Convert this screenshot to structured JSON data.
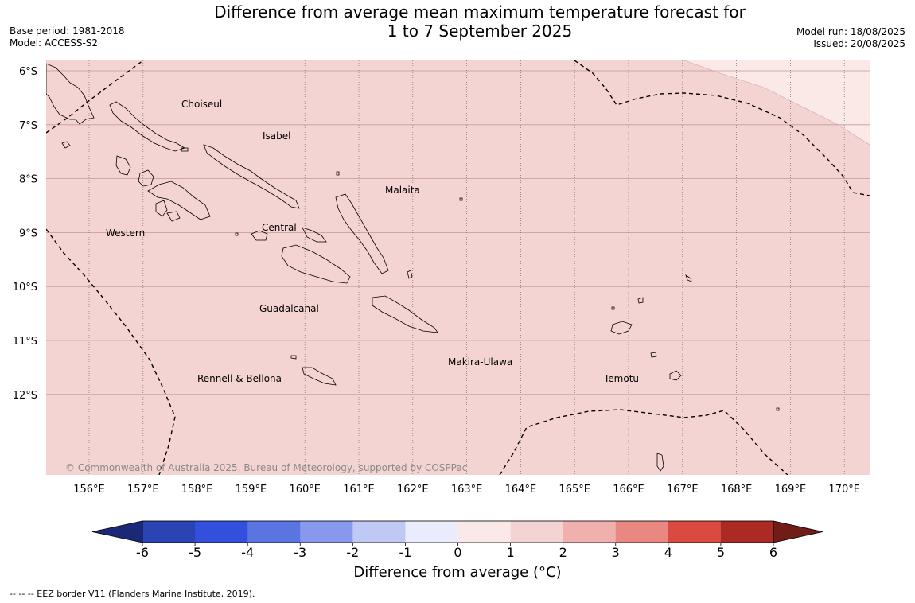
{
  "title": {
    "line1": "Difference from average mean maximum temperature forecast for",
    "line2": "1 to 7 September 2025"
  },
  "meta": {
    "base_period": "Base period: 1981-2018",
    "model": "Model: ACCESS-S2",
    "model_run": "Model run: 18/08/2025",
    "issued": "Issued: 20/08/2025"
  },
  "map": {
    "lat_labels": [
      "6°S",
      "7°S",
      "8°S",
      "9°S",
      "10°S",
      "11°S",
      "12°S"
    ],
    "lon_labels": [
      "156°E",
      "157°E",
      "158°E",
      "159°E",
      "160°E",
      "161°E",
      "162°E",
      "163°E",
      "164°E",
      "165°E",
      "166°E",
      "167°E",
      "168°E",
      "169°E",
      "170°E"
    ],
    "provinces": [
      "Choiseul",
      "Isabel",
      "Malaita",
      "Western",
      "Central",
      "Guadalcanal",
      "Makira-Ulawa",
      "Rennell & Bellona",
      "Temotu"
    ],
    "copyright": "© Commonwealth of Australia 2025, Bureau of Meteorology, supported by COSPPac",
    "background_color": "#f4d4d2",
    "lighter_color": "#fbe9e8"
  },
  "colorbar": {
    "ticks": [
      "-6",
      "-5",
      "-4",
      "-3",
      "-2",
      "-1",
      "0",
      "1",
      "2",
      "3",
      "4",
      "5",
      "6"
    ],
    "colors": [
      "#1a2878",
      "#2a44b4",
      "#3350dc",
      "#5a74e2",
      "#8898ec",
      "#c0c8f4",
      "#e8ecfc",
      "#fbe9e8",
      "#f4d4d2",
      "#efb0ae",
      "#e88880",
      "#da4a40",
      "#ac2a24",
      "#721c18"
    ],
    "label": "Difference from average (°C)"
  },
  "footer": "--  --  -- EEZ border V11 (Flanders Marine Institute, 2019)."
}
